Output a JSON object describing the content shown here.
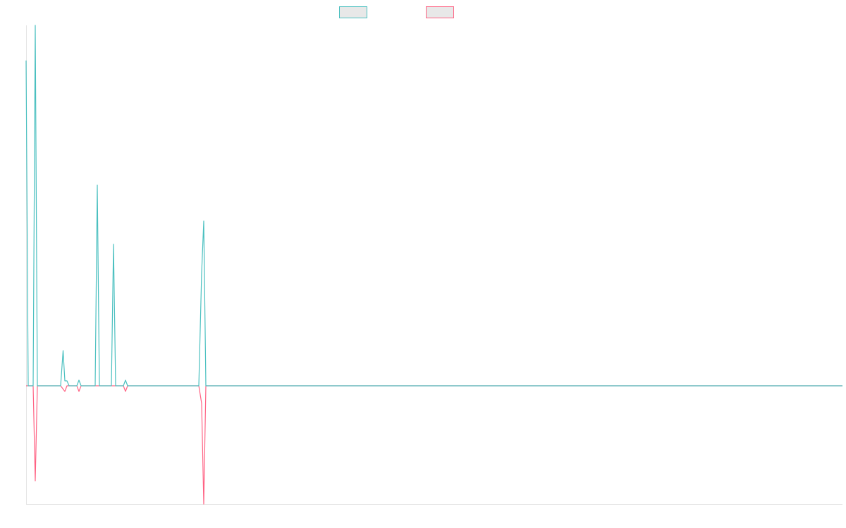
{
  "chart_data": {
    "type": "line",
    "xlim": [
      0,
      1158
    ],
    "ylim": [
      -168,
      512
    ],
    "grid": false,
    "series": [
      {
        "color": "#ff6384",
        "x": [
          0,
          10,
          13,
          16,
          49,
          55,
          58,
          72,
          75,
          78,
          138,
          141,
          144,
          245,
          249,
          252,
          255,
          1158
        ],
        "values": [
          0,
          0,
          -135,
          0,
          0,
          -8,
          0,
          0,
          -8,
          0,
          0,
          -8,
          0,
          0,
          -25,
          -168,
          0,
          0
        ]
      },
      {
        "color": "#4bc0c0",
        "x": [
          0,
          3,
          10,
          13,
          16,
          49,
          52.5,
          55,
          58,
          61,
          72,
          75,
          78,
          98,
          101,
          104,
          121,
          124,
          127,
          138,
          141,
          144,
          245,
          249,
          252,
          255,
          1158
        ],
        "values": [
          462,
          0,
          0,
          512,
          0,
          0,
          50,
          7,
          7,
          0,
          0,
          8,
          0,
          0,
          285,
          0,
          0,
          201,
          0,
          0,
          8,
          0,
          0,
          160,
          234,
          0,
          0
        ]
      }
    ]
  }
}
